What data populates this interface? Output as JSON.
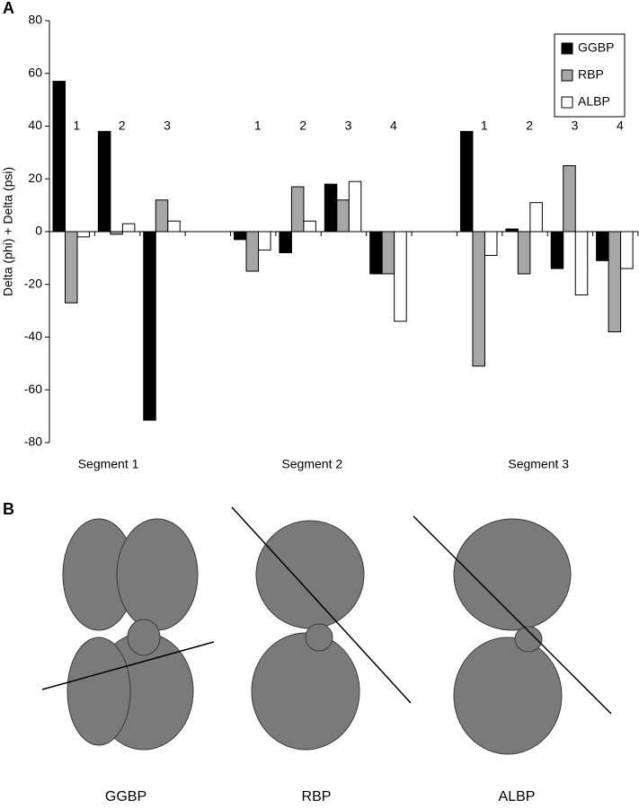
{
  "chart_data": {
    "type": "bar",
    "panel_label": "A",
    "y_label": "Delta (phi) + Delta (psi)",
    "categories": [
      "1",
      "2",
      "3",
      null,
      "1",
      "2",
      "3",
      "4",
      null,
      "1",
      "2",
      "3",
      "4"
    ],
    "x_groups": [
      "Segment 1",
      "Segment 2",
      "Segment 3"
    ],
    "series": [
      {
        "name": "GGBP",
        "color": "#000000",
        "values": [
          57,
          38,
          -71.5,
          null,
          -3,
          -8,
          18,
          -16,
          null,
          38,
          1,
          -14,
          -11
        ]
      },
      {
        "name": "RBP",
        "color": "#a6a6a6",
        "values": [
          -27,
          -1,
          12,
          null,
          -15,
          17,
          12,
          -16,
          null,
          -51,
          -16,
          25,
          -38
        ]
      },
      {
        "name": "ALBP",
        "color": "#ffffff",
        "values": [
          -2,
          3,
          4,
          null,
          -7,
          4,
          19,
          -34,
          null,
          -9,
          11,
          -24,
          -14
        ]
      }
    ],
    "ylim": [
      -80,
      80
    ],
    "yticks": [
      -80,
      -60,
      -40,
      -20,
      0,
      20,
      40,
      60,
      80
    ],
    "grid": false,
    "legend": "top-right"
  },
  "panel_b": {
    "label": "B",
    "structures": [
      "GGBP",
      "RBP",
      "ALBP"
    ]
  }
}
